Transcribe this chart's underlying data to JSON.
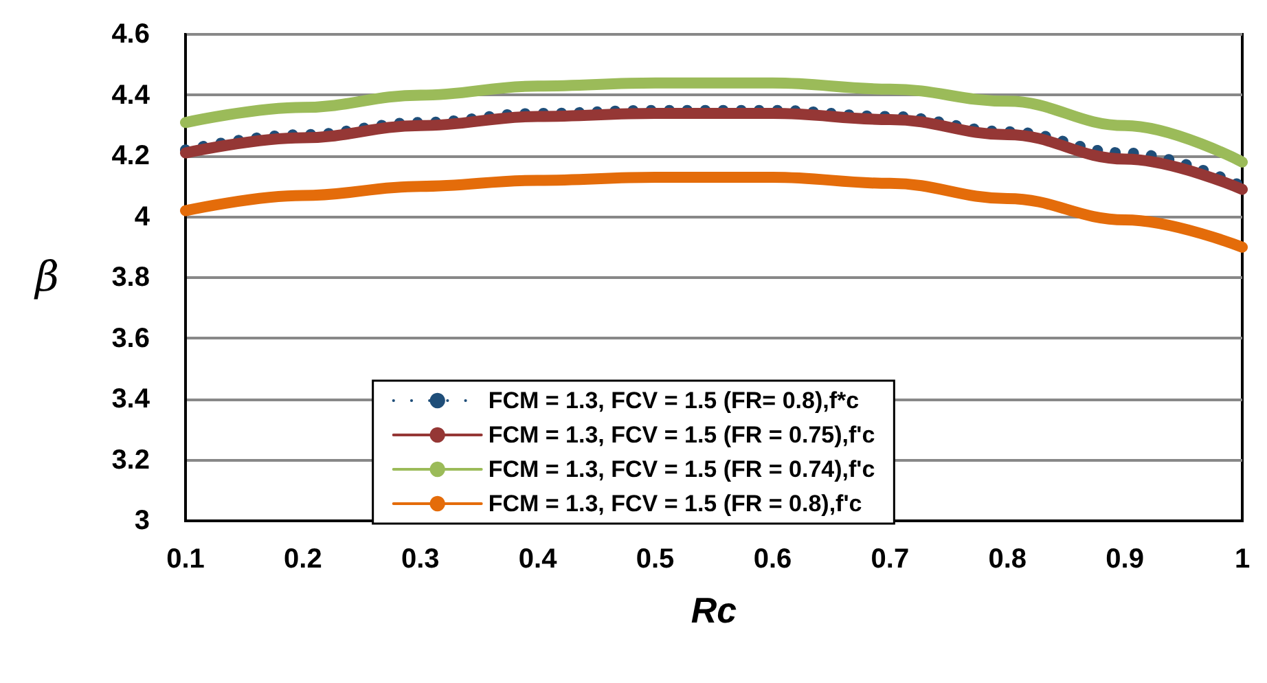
{
  "chart_data": {
    "type": "line",
    "xlabel": "Rc",
    "ylabel": "β",
    "x": [
      0.1,
      0.2,
      0.3,
      0.4,
      0.5,
      0.6,
      0.7,
      0.8,
      0.9,
      1
    ],
    "xlim": [
      0.1,
      1
    ],
    "xticks": [
      0.1,
      0.2,
      0.3,
      0.4,
      0.5,
      0.6,
      0.7,
      0.8,
      0.9,
      1
    ],
    "ylim": [
      3,
      4.6
    ],
    "yticks": [
      3,
      3.2,
      3.4,
      3.6,
      3.8,
      4,
      4.2,
      4.4,
      4.6
    ],
    "grid": "y",
    "legend": "bottom",
    "marker": "none",
    "series": [
      {
        "name": "FCM = 1.3, FCV = 1.5 (FR= 0.8),f*c",
        "color": "#1f4e79",
        "line_style": "dotted",
        "values": [
          4.22,
          4.27,
          4.31,
          4.34,
          4.35,
          4.35,
          4.33,
          4.28,
          4.21,
          4.1
        ]
      },
      {
        "name": "FCM = 1.3, FCV = 1.5 (FR = 0.75),f'c",
        "color": "#953735",
        "line_style": "solid",
        "values": [
          4.21,
          4.26,
          4.3,
          4.33,
          4.34,
          4.34,
          4.32,
          4.27,
          4.19,
          4.09
        ]
      },
      {
        "name": "FCM = 1.3, FCV = 1.5 (FR = 0.74),f'c",
        "color": "#9bbb59",
        "line_style": "solid",
        "values": [
          4.31,
          4.36,
          4.4,
          4.43,
          4.44,
          4.44,
          4.42,
          4.38,
          4.3,
          4.18
        ]
      },
      {
        "name": "FCM = 1.3, FCV = 1.5 (FR = 0.8),f'c",
        "color": "#e46c0a",
        "line_style": "solid",
        "values": [
          4.02,
          4.07,
          4.1,
          4.12,
          4.13,
          4.13,
          4.11,
          4.06,
          3.99,
          3.9
        ]
      }
    ]
  }
}
